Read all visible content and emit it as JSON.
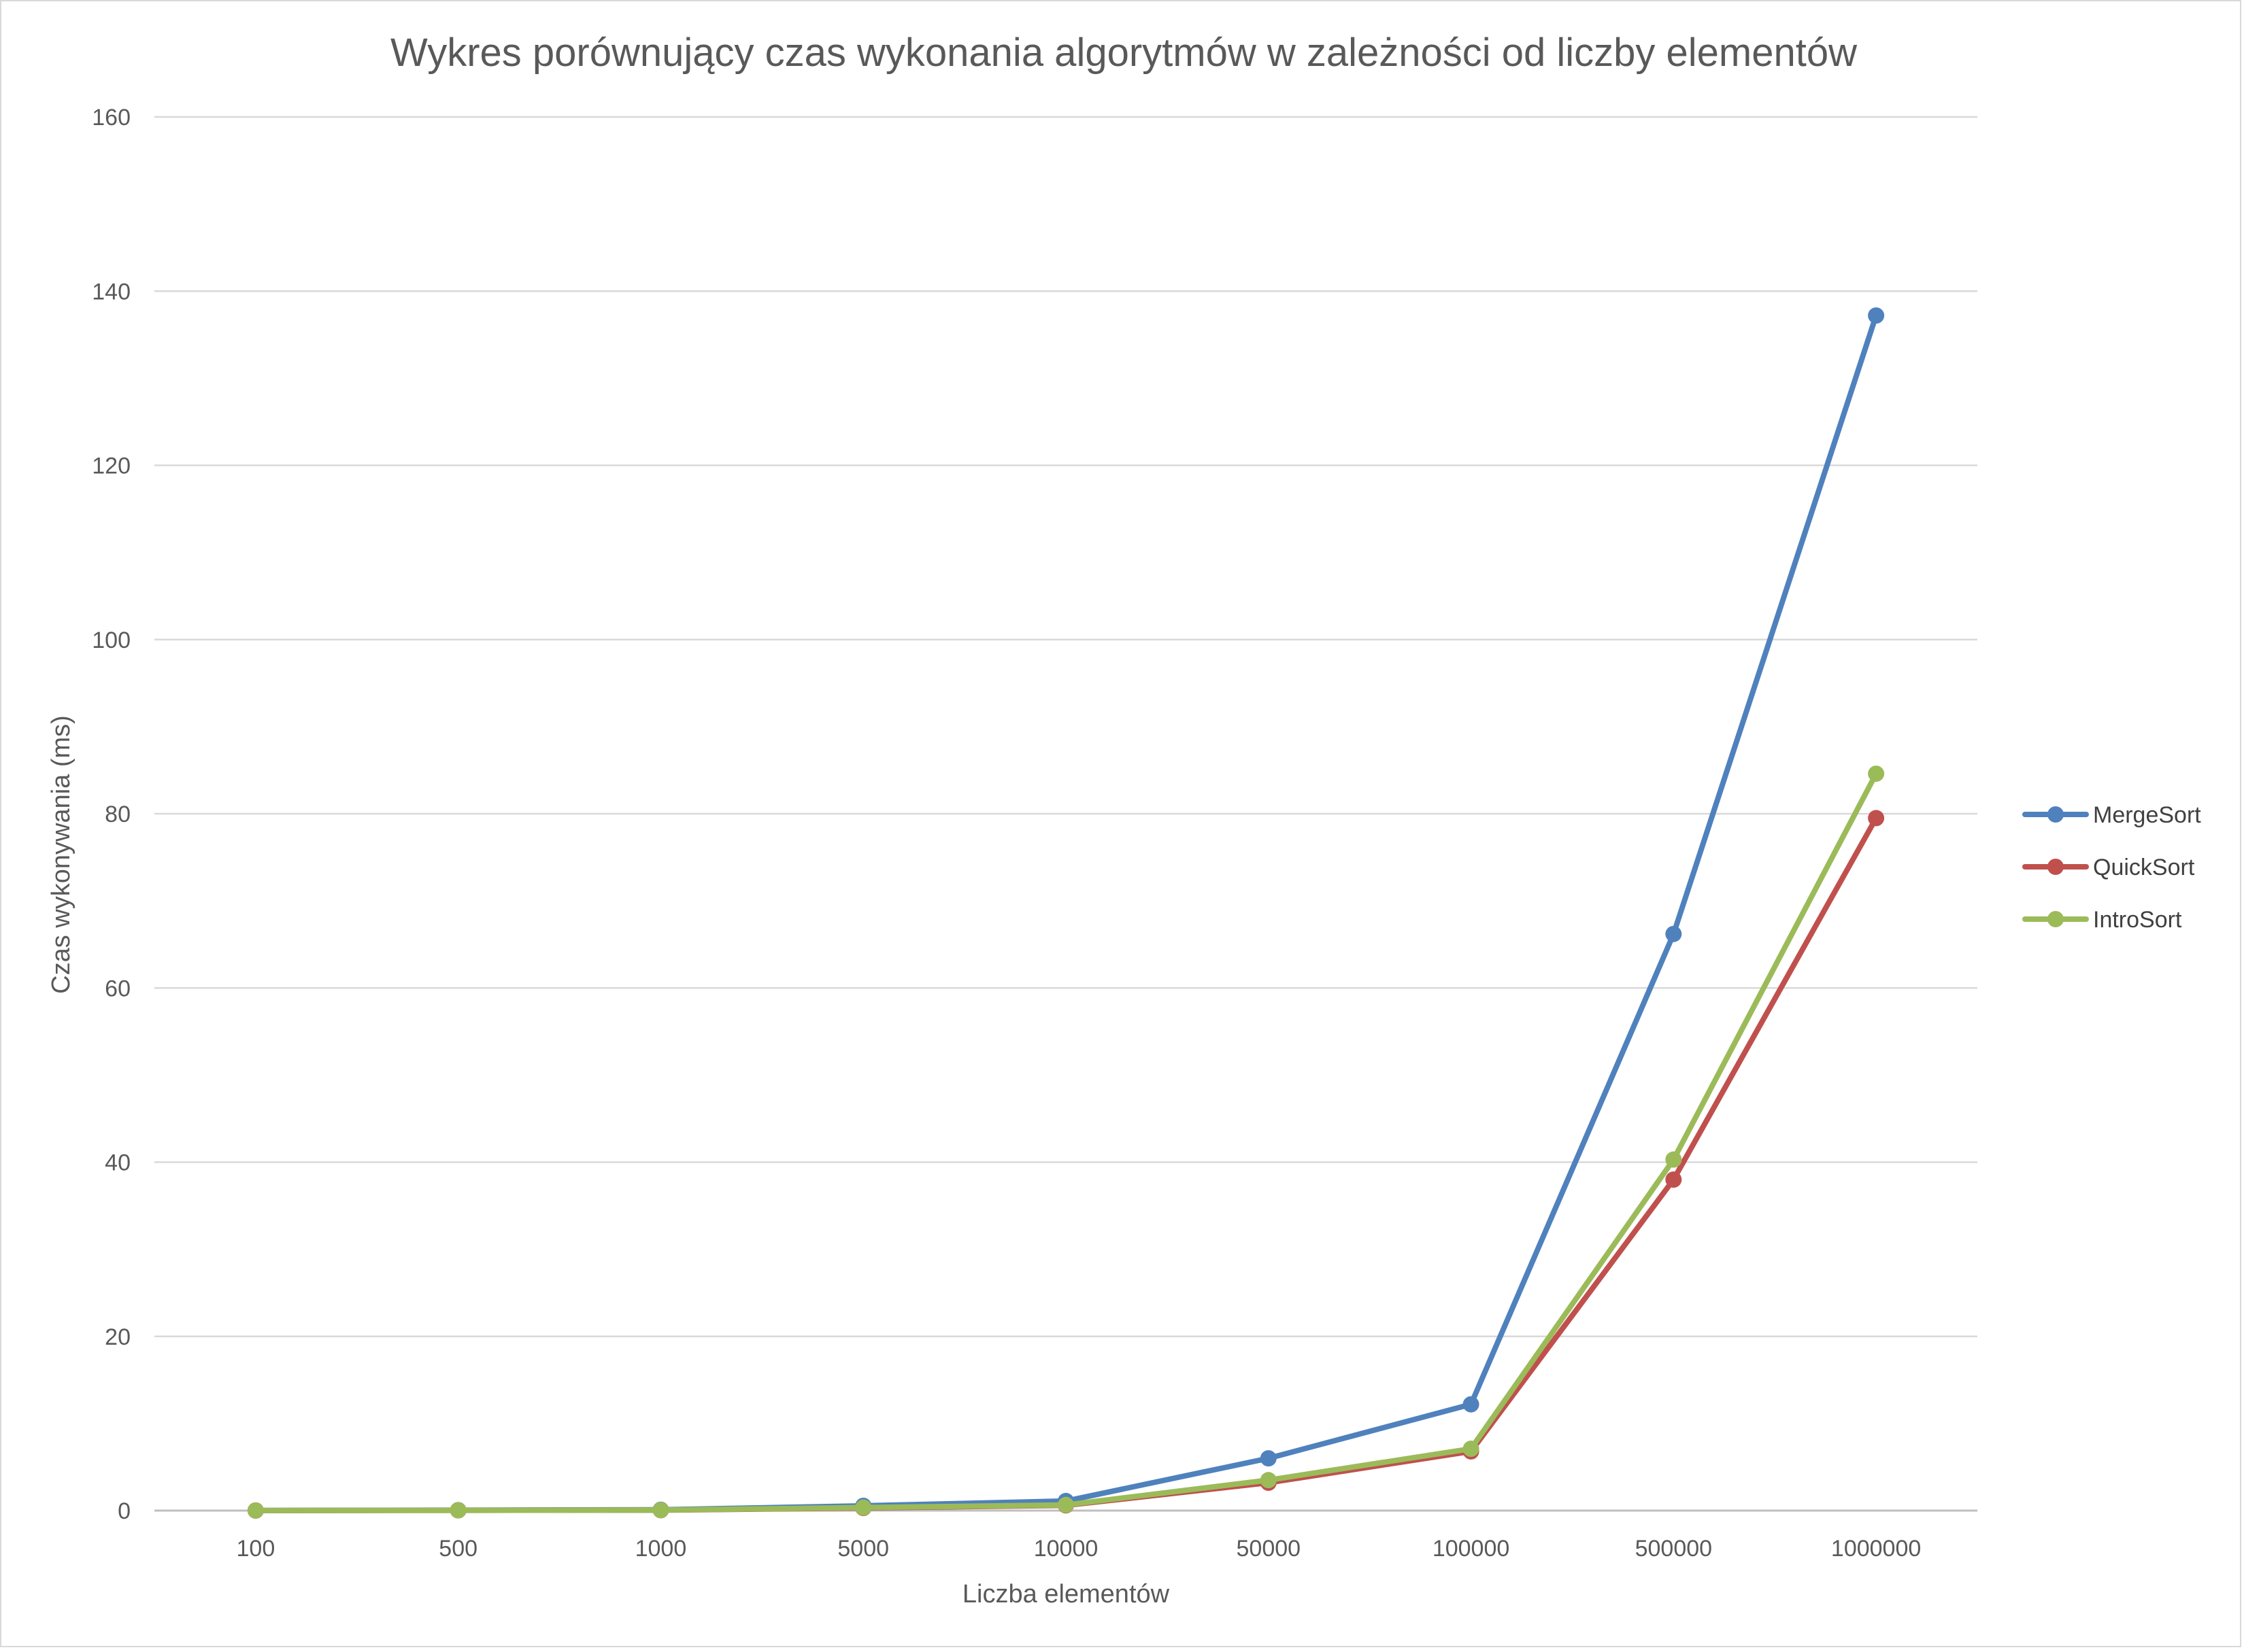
{
  "chart_data": {
    "type": "line",
    "title": "Wykres porównujący czas wykonania algorytmów w zależności od liczby elementów",
    "xlabel": "Liczba elementów",
    "ylabel": "Czas wykonywania (ms)",
    "categories": [
      "100",
      "500",
      "1000",
      "5000",
      "10000",
      "50000",
      "100000",
      "500000",
      "1000000"
    ],
    "ylim": [
      0,
      160
    ],
    "yticks": [
      "0",
      "20",
      "40",
      "60",
      "80",
      "100",
      "120",
      "140",
      "160"
    ],
    "grid": true,
    "legend_position": "right",
    "series": [
      {
        "name": "MergeSort",
        "color": "#4f81bd",
        "values": [
          0.01,
          0.05,
          0.1,
          0.55,
          1.1,
          6.0,
          12.2,
          66.2,
          137.2
        ]
      },
      {
        "name": "QuickSort",
        "color": "#c0504d",
        "values": [
          0.01,
          0.03,
          0.05,
          0.3,
          0.6,
          3.2,
          6.8,
          38.0,
          79.5
        ]
      },
      {
        "name": "IntroSort",
        "color": "#9bbb59",
        "values": [
          0.01,
          0.03,
          0.06,
          0.35,
          0.65,
          3.5,
          7.1,
          40.3,
          84.6
        ]
      }
    ]
  }
}
